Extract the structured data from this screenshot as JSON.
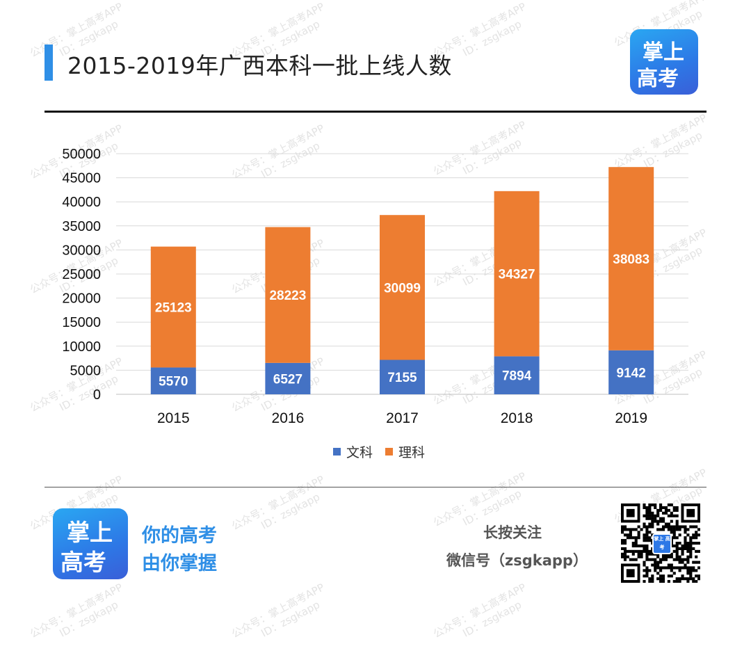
{
  "header": {
    "title": "2015-2019年广西本科一批上线人数"
  },
  "logo": {
    "line1": "掌上",
    "line2": "高考"
  },
  "watermark": {
    "line1": "公众号：掌上高考APP",
    "line2": "ID：zsgkapp"
  },
  "colors": {
    "wen": "#4472c4",
    "li": "#ed7d31",
    "accent": "#2f8fe6"
  },
  "chart_data": {
    "type": "bar",
    "stacked": true,
    "title": "",
    "xlabel": "",
    "ylabel": "",
    "categories": [
      "2015",
      "2016",
      "2017",
      "2018",
      "2019"
    ],
    "series": [
      {
        "name": "文科",
        "values": [
          5570,
          6527,
          7155,
          7894,
          9142
        ]
      },
      {
        "name": "理科",
        "values": [
          25123,
          28223,
          30099,
          34327,
          38083
        ]
      }
    ],
    "ylim": [
      0,
      50000
    ],
    "y_ticks": [
      "0",
      "5000",
      "10000",
      "15000",
      "20000",
      "25000",
      "30000",
      "35000",
      "40000",
      "45000",
      "50000"
    ],
    "grid": true,
    "legend": "bottom"
  },
  "footer": {
    "slogan_line1": "你的高考",
    "slogan_line2": "由你掌握",
    "follow_line1": "长按关注",
    "follow_line2": "微信号（zsgkapp）",
    "qr_label": "掌上 高考"
  }
}
